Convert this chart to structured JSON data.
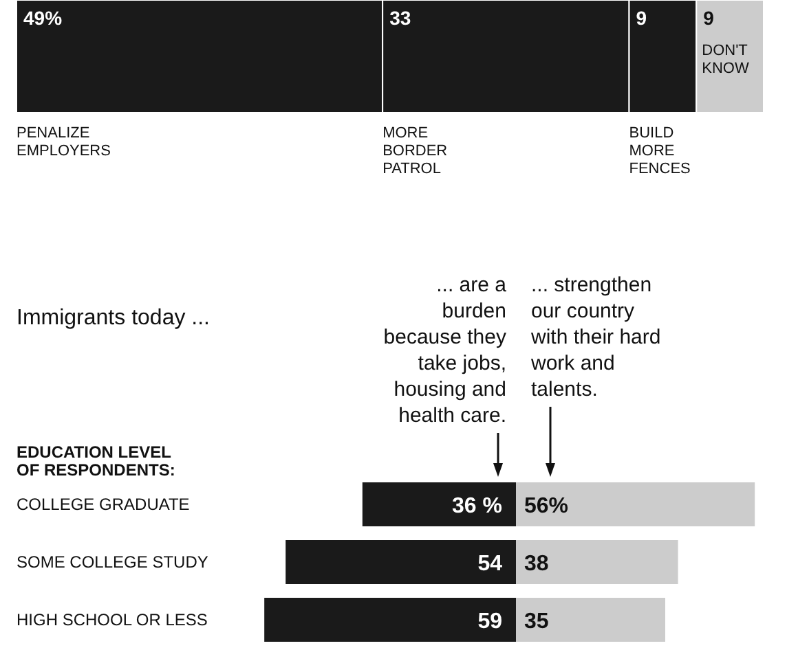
{
  "chart_data": [
    {
      "type": "bar",
      "orientation": "horizontal",
      "stacked": true,
      "categories": [
        null
      ],
      "series": [
        {
          "name": "PENALIZE EMPLOYERS",
          "color": "#1a1a1a",
          "values": [
            49
          ],
          "value_labels": [
            "49%"
          ]
        },
        {
          "name": "MORE BORDER PATROL",
          "color": "#1a1a1a",
          "values": [
            33
          ],
          "value_labels": [
            "33"
          ]
        },
        {
          "name": "BUILD MORE FENCES",
          "color": "#1a1a1a",
          "values": [
            9
          ],
          "value_labels": [
            "9"
          ]
        },
        {
          "name": "DON'T KNOW",
          "color": "#cccccc",
          "values": [
            9
          ],
          "value_labels": [
            "9"
          ]
        }
      ]
    },
    {
      "type": "bar",
      "orientation": "horizontal",
      "title": "Immigrants today ...",
      "ylabel": "EDUCATION LEVEL OF RESPONDENTS:",
      "xlim": [
        59,
        0
      ],
      "categories": [
        "COLLEGE GRADUATE",
        "SOME COLLEGE STUDY",
        "HIGH SCHOOL OR LESS"
      ],
      "series": [
        {
          "name": "... are a burden because they take jobs, housing and health care.",
          "color": "#1a1a1a",
          "values": [
            36,
            54,
            59
          ],
          "value_labels": [
            "36 %",
            "54",
            "59"
          ]
        }
      ]
    },
    {
      "type": "bar",
      "orientation": "horizontal",
      "xlim": [
        0,
        56
      ],
      "categories": [
        null,
        null,
        null
      ],
      "series": [
        {
          "name": "... strengthen our country with their hard work and talents.",
          "color": "#cccccc",
          "values": [
            56,
            38,
            35
          ],
          "value_labels": [
            "56%",
            "38",
            "35"
          ]
        }
      ]
    }
  ]
}
